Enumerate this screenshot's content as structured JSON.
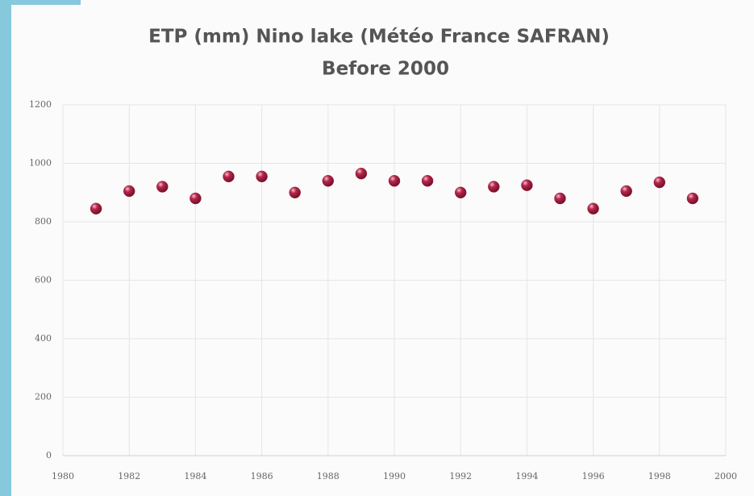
{
  "chart_data": {
    "type": "scatter",
    "title": "ETP (mm) Nino lake (Météo France SAFRAN)",
    "subtitle": "Before 2000",
    "x": [
      1981,
      1982,
      1983,
      1984,
      1985,
      1986,
      1987,
      1988,
      1989,
      1990,
      1991,
      1992,
      1993,
      1994,
      1995,
      1996,
      1997,
      1998,
      1999
    ],
    "series": [
      {
        "color": "#a3203f",
        "values": [
          845,
          905,
          920,
          880,
          955,
          955,
          900,
          940,
          965,
          940,
          940,
          900,
          920,
          925,
          880,
          845,
          905,
          935,
          880
        ]
      }
    ],
    "xlim": [
      1980,
      2000
    ],
    "xticks": [
      1980,
      1982,
      1984,
      1986,
      1988,
      1990,
      1992,
      1994,
      1996,
      1998,
      2000
    ],
    "ylim": [
      0,
      1200
    ],
    "yticks": [
      0,
      200,
      400,
      600,
      800,
      1000,
      1200
    ],
    "grid": true
  }
}
